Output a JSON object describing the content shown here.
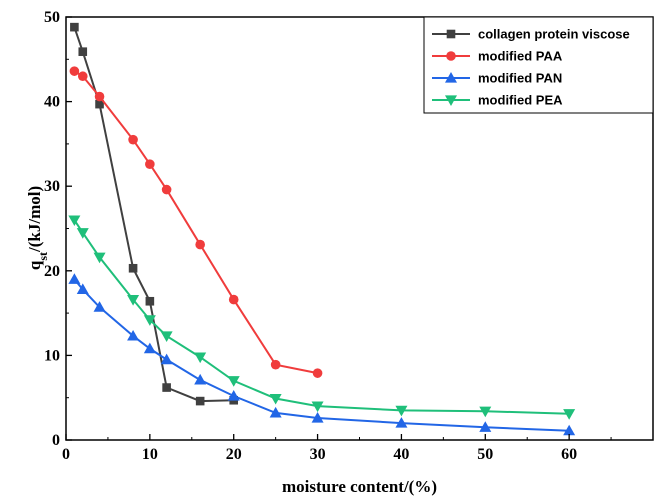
{
  "chart_data": {
    "type": "line",
    "title": "",
    "xlabel": "moisture content/(%)",
    "ylabel_main": "q",
    "ylabel_sub": "st",
    "ylabel_rest": "/(kJ/mol)",
    "xlim": [
      0,
      70
    ],
    "ylim": [
      0,
      50
    ],
    "xticks": [
      0,
      10,
      20,
      30,
      40,
      50,
      60
    ],
    "yticks": [
      0,
      10,
      20,
      30,
      40,
      50
    ],
    "grid": false,
    "legend_position": "top-right",
    "series": [
      {
        "name": "collagen protein viscose",
        "color": "#404040",
        "marker": "square",
        "x": [
          1,
          2,
          4,
          8,
          10,
          12,
          16,
          20
        ],
        "y": [
          48.8,
          45.9,
          39.7,
          20.3,
          16.4,
          6.2,
          4.6,
          4.7
        ]
      },
      {
        "name": "modified PAA",
        "color": "#f03c3c",
        "marker": "circle",
        "x": [
          1,
          2,
          4,
          8,
          10,
          12,
          16,
          20,
          25,
          30
        ],
        "y": [
          43.6,
          43.0,
          40.6,
          35.5,
          32.6,
          29.6,
          23.1,
          16.6,
          8.9,
          7.9
        ]
      },
      {
        "name": "modified PAN",
        "color": "#2266e6",
        "marker": "triangle-up",
        "x": [
          1,
          2,
          4,
          8,
          10,
          12,
          16,
          20,
          25,
          30,
          40,
          50,
          60
        ],
        "y": [
          19.0,
          17.8,
          15.7,
          12.3,
          10.8,
          9.5,
          7.1,
          5.2,
          3.2,
          2.6,
          2.0,
          1.5,
          1.1
        ]
      },
      {
        "name": "modified PEA",
        "color": "#1fbf7a",
        "marker": "triangle-down",
        "x": [
          1,
          2,
          4,
          8,
          10,
          12,
          16,
          20,
          25,
          30,
          40,
          50,
          60
        ],
        "y": [
          26.0,
          24.5,
          21.6,
          16.6,
          14.2,
          12.3,
          9.8,
          7.0,
          4.9,
          4.0,
          3.5,
          3.4,
          3.1
        ]
      }
    ]
  }
}
